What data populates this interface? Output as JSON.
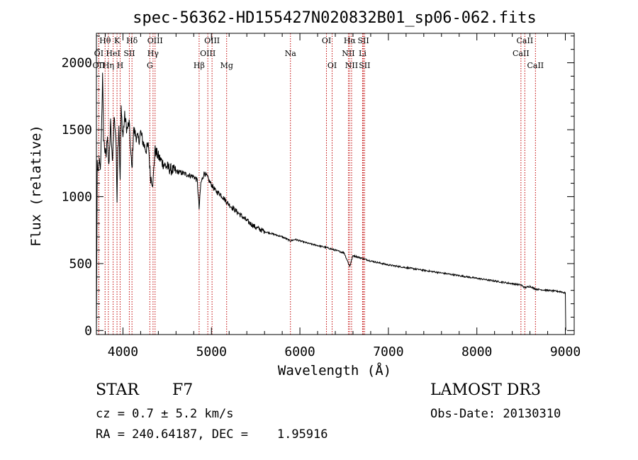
{
  "chart_data": {
    "type": "line",
    "title": "spec-56362-HD155427N020832B01_sp06-062.fits",
    "xlabel": "Wavelength (Å)",
    "ylabel": "Flux (relative)",
    "xlim": [
      3700,
      9100
    ],
    "ylim": [
      -30,
      2220
    ],
    "xticks": [
      4000,
      5000,
      6000,
      7000,
      8000,
      9000
    ],
    "yticks": [
      0,
      500,
      1000,
      1500,
      2000
    ],
    "series": [
      {
        "name": "flux",
        "x": [
          3700,
          3710,
          3720,
          3730,
          3745,
          3760,
          3770,
          3780,
          3795,
          3810,
          3825,
          3840,
          3860,
          3880,
          3900,
          3920,
          3933,
          3940,
          3955,
          3968,
          3980,
          4000,
          4020,
          4045,
          4070,
          4090,
          4102,
          4120,
          4150,
          4180,
          4200,
          4230,
          4260,
          4290,
          4310,
          4340,
          4360,
          4400,
          4450,
          4500,
          4550,
          4600,
          4650,
          4700,
          4750,
          4800,
          4840,
          4861,
          4880,
          4920,
          4950,
          4980,
          5000,
          5050,
          5100,
          5150,
          5172,
          5200,
          5300,
          5400,
          5500,
          5600,
          5700,
          5800,
          5893,
          5950,
          6100,
          6300,
          6400,
          6500,
          6563,
          6600,
          6700,
          6800,
          7000,
          7200,
          7500,
          7800,
          8000,
          8200,
          8400,
          8500,
          8542,
          8600,
          8662,
          8800,
          8950,
          9000,
          9005
        ],
        "y": [
          0,
          1260,
          1150,
          1280,
          1180,
          1580,
          1900,
          1450,
          1350,
          1300,
          1480,
          1200,
          1550,
          1250,
          1600,
          1450,
          1000,
          1300,
          1550,
          1100,
          1650,
          1450,
          1600,
          1500,
          1550,
          1300,
          1200,
          1500,
          1450,
          1420,
          1480,
          1400,
          1350,
          1380,
          1150,
          1100,
          1350,
          1300,
          1250,
          1220,
          1200,
          1190,
          1180,
          1170,
          1160,
          1150,
          1120,
          910,
          1100,
          1180,
          1150,
          1110,
          1090,
          1040,
          1020,
          980,
          960,
          940,
          880,
          820,
          770,
          740,
          720,
          700,
          670,
          680,
          650,
          620,
          600,
          580,
          480,
          560,
          540,
          520,
          490,
          470,
          440,
          410,
          390,
          370,
          350,
          340,
          320,
          330,
          310,
          300,
          290,
          280,
          0
        ]
      }
    ],
    "lines": [
      {
        "label": "Hθ",
        "x": 3798,
        "row": 0
      },
      {
        "label": "K",
        "x": 3933,
        "row": 0
      },
      {
        "label": "Hδ",
        "x": 4102,
        "row": 0
      },
      {
        "label": "OIII",
        "x": 4363,
        "row": 0
      },
      {
        "label": "OIII",
        "x": 5007,
        "row": 0
      },
      {
        "label": "OI",
        "x": 6300,
        "row": 0
      },
      {
        "label": "Hα",
        "x": 6563,
        "row": 0
      },
      {
        "label": "SII",
        "x": 6717,
        "row": 0
      },
      {
        "label": "CaII",
        "x": 8542,
        "row": 0
      },
      {
        "label": "OI",
        "x": 3727,
        "row": 1
      },
      {
        "label": "HeI",
        "x": 3889,
        "row": 1
      },
      {
        "label": "SII",
        "x": 4072,
        "row": 1
      },
      {
        "label": "Hγ",
        "x": 4340,
        "row": 1
      },
      {
        "label": "OIII",
        "x": 4959,
        "row": 1
      },
      {
        "label": "Na",
        "x": 5893,
        "row": 1
      },
      {
        "label": "NII",
        "x": 6548,
        "row": 1
      },
      {
        "label": "Li",
        "x": 6708,
        "row": 1
      },
      {
        "label": "CaII",
        "x": 8498,
        "row": 1
      },
      {
        "label": "OII",
        "x": 3727,
        "row": 2
      },
      {
        "label": "Hη",
        "x": 3835,
        "row": 2
      },
      {
        "label": "H",
        "x": 3968,
        "row": 2
      },
      {
        "label": "G",
        "x": 4304,
        "row": 2
      },
      {
        "label": "Hβ",
        "x": 4861,
        "row": 2
      },
      {
        "label": "Mg",
        "x": 5172,
        "row": 2
      },
      {
        "label": "OI",
        "x": 6364,
        "row": 2
      },
      {
        "label": "NII",
        "x": 6584,
        "row": 2
      },
      {
        "label": "SII",
        "x": 6731,
        "row": 2
      },
      {
        "label": "CaII",
        "x": 8662,
        "row": 2
      }
    ]
  },
  "info": {
    "class": "STAR",
    "subclass": "F7",
    "cz": "cz = 0.7 ± 5.2 km/s",
    "radec": "RA = 240.64187, DEC =    1.95916",
    "survey": "LAMOST DR3",
    "obsdate": "Obs-Date: 20130310"
  }
}
